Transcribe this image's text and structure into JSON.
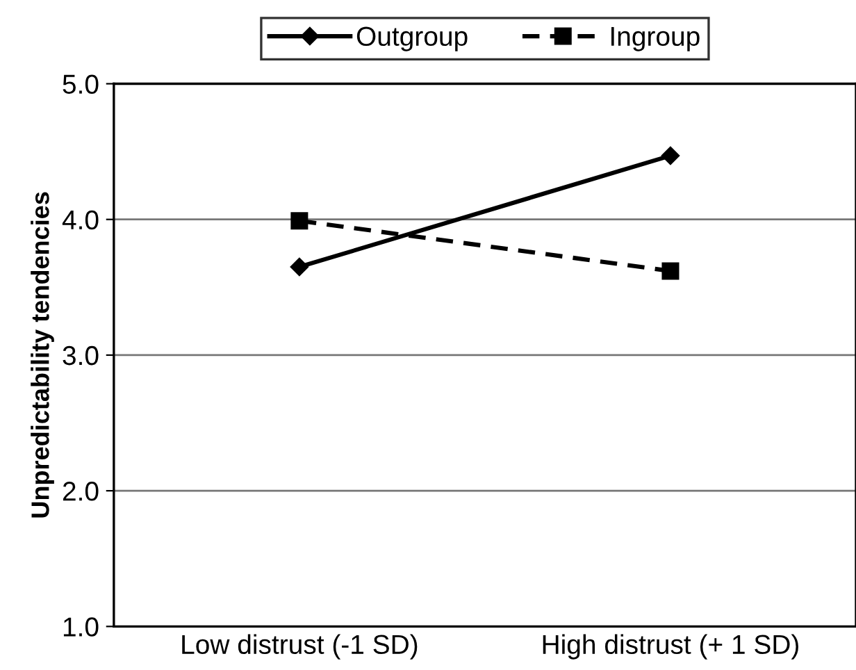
{
  "chart_data": {
    "type": "line",
    "ylabel": "Unpredictability tendencies",
    "categories": [
      "Low distrust (-1 SD)",
      "High distrust (+ 1 SD)"
    ],
    "series": [
      {
        "name": "Outgroup",
        "color": "#000000",
        "values": [
          3.65,
          4.47
        ],
        "marker": "diamond",
        "line_style": "solid"
      },
      {
        "name": "Ingroup",
        "color": "#000000",
        "values": [
          3.99,
          3.62
        ],
        "marker": "square",
        "line_style": "dashed"
      }
    ],
    "ylim": [
      1.0,
      5.0
    ],
    "yticks": [
      {
        "value": 1,
        "label": "1.0"
      },
      {
        "value": 2,
        "label": "2.0"
      },
      {
        "value": 3,
        "label": "3.0"
      },
      {
        "value": 4,
        "label": "4.0"
      },
      {
        "value": 5,
        "label": "5.0"
      }
    ],
    "grid": "y",
    "legend": "top"
  }
}
